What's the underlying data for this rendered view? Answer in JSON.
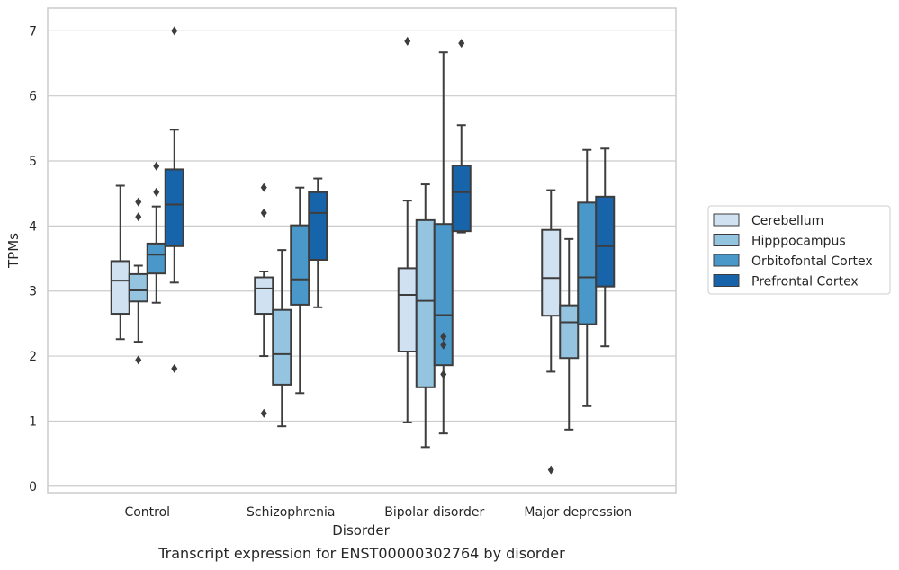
{
  "caption": "Transcript expression for ENST00000302764 by disorder",
  "chart_data": {
    "type": "boxplot",
    "xlabel": "Disorder",
    "ylabel": "TPMs",
    "ylim": [
      -0.1,
      7.35
    ],
    "yticks": [
      0,
      1,
      2,
      3,
      4,
      5,
      6,
      7
    ],
    "grid": "horizontal",
    "legend_placement": "right, outside plot",
    "categories": [
      "Control",
      "Schizophrenia",
      "Bipolar disorder",
      "Major depression"
    ],
    "series": [
      {
        "name": "Cerebellum",
        "color": "#d0e1f2",
        "boxes": [
          {
            "whislo": 2.26,
            "q1": 2.65,
            "med": 3.16,
            "q3": 3.46,
            "whishi": 4.62,
            "fliers": []
          },
          {
            "whislo": 2.0,
            "q1": 2.65,
            "med": 3.04,
            "q3": 3.21,
            "whishi": 3.3,
            "fliers": [
              4.59,
              4.2,
              1.12
            ]
          },
          {
            "whislo": 0.98,
            "q1": 2.07,
            "med": 2.94,
            "q3": 3.35,
            "whishi": 4.39,
            "fliers": [
              6.84
            ]
          },
          {
            "whislo": 1.76,
            "q1": 2.62,
            "med": 3.2,
            "q3": 3.94,
            "whishi": 4.55,
            "fliers": [
              0.25
            ]
          }
        ]
      },
      {
        "name": "Hipppocampus",
        "color": "#94c4df",
        "boxes": [
          {
            "whislo": 2.22,
            "q1": 2.84,
            "med": 3.01,
            "q3": 3.26,
            "whishi": 3.39,
            "fliers": [
              4.37,
              4.14,
              1.94
            ]
          },
          {
            "whislo": 0.92,
            "q1": 1.56,
            "med": 2.03,
            "q3": 2.71,
            "whishi": 3.63,
            "fliers": []
          },
          {
            "whislo": 0.6,
            "q1": 1.52,
            "med": 2.85,
            "q3": 4.09,
            "whishi": 4.64,
            "fliers": []
          },
          {
            "whislo": 0.87,
            "q1": 1.97,
            "med": 2.52,
            "q3": 2.78,
            "whishi": 3.8,
            "fliers": []
          }
        ]
      },
      {
        "name": "Orbitofontal Cortex",
        "color": "#4a98c9",
        "boxes": [
          {
            "whislo": 2.82,
            "q1": 3.27,
            "med": 3.56,
            "q3": 3.73,
            "whishi": 4.3,
            "fliers": [
              4.92,
              4.52
            ]
          },
          {
            "whislo": 1.43,
            "q1": 2.79,
            "med": 3.18,
            "q3": 4.01,
            "whishi": 4.59,
            "fliers": []
          },
          {
            "whislo": 0.81,
            "q1": 1.86,
            "med": 2.63,
            "q3": 4.03,
            "whishi": 6.67,
            "fliers": [
              2.3,
              2.17,
              1.72
            ]
          },
          {
            "whislo": 1.23,
            "q1": 2.49,
            "med": 3.21,
            "q3": 4.36,
            "whishi": 5.17,
            "fliers": []
          }
        ]
      },
      {
        "name": "Prefrontal Cortex",
        "color": "#1764ab",
        "boxes": [
          {
            "whislo": 3.13,
            "q1": 3.69,
            "med": 4.33,
            "q3": 4.87,
            "whishi": 5.48,
            "fliers": [
              7.0,
              1.81
            ]
          },
          {
            "whislo": 2.75,
            "q1": 3.48,
            "med": 4.2,
            "q3": 4.52,
            "whishi": 4.73,
            "fliers": []
          },
          {
            "whislo": 3.9,
            "q1": 3.92,
            "med": 4.52,
            "q3": 4.93,
            "whishi": 5.55,
            "fliers": [
              6.81
            ]
          },
          {
            "whislo": 2.15,
            "q1": 3.07,
            "med": 3.69,
            "q3": 4.45,
            "whishi": 5.19,
            "fliers": []
          }
        ]
      }
    ]
  }
}
